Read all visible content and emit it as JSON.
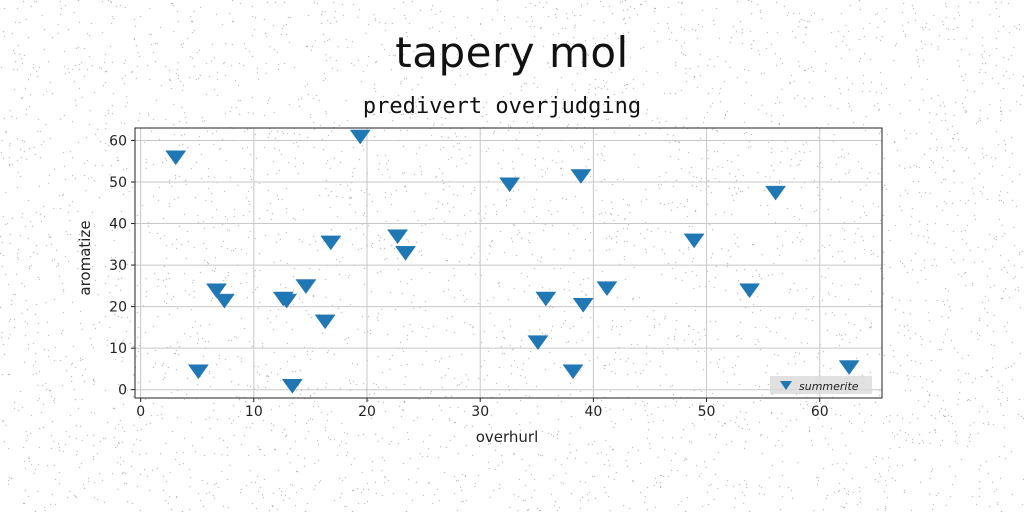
{
  "chart_data": {
    "type": "scatter",
    "title": "tapery mol",
    "subtitle": "predivert overjudging",
    "xlabel": "overhurl",
    "ylabel": "aromatize",
    "xlim": [
      -0.5,
      65.5
    ],
    "ylim": [
      -2,
      63
    ],
    "xticks": [
      0,
      10,
      20,
      30,
      40,
      50,
      60
    ],
    "yticks": [
      0,
      10,
      20,
      30,
      40,
      50,
      60
    ],
    "grid": true,
    "legend_position": "bottom-right",
    "series": [
      {
        "name": "summerite",
        "color": "#1f77b4",
        "marker": "triangle-down",
        "points": [
          [
            3.1,
            56
          ],
          [
            19.4,
            61
          ],
          [
            5.1,
            4.5
          ],
          [
            6.7,
            24
          ],
          [
            7.4,
            21.5
          ],
          [
            12.6,
            22
          ],
          [
            12.9,
            21.5
          ],
          [
            13.4,
            1
          ],
          [
            14.6,
            25
          ],
          [
            16.3,
            16.5
          ],
          [
            16.8,
            35.5
          ],
          [
            22.7,
            37
          ],
          [
            23.4,
            33
          ],
          [
            32.6,
            49.5
          ],
          [
            35.1,
            11.5
          ],
          [
            35.8,
            22
          ],
          [
            38.2,
            4.5
          ],
          [
            38.9,
            51.5
          ],
          [
            39.1,
            20.5
          ],
          [
            41.2,
            24.5
          ],
          [
            48.9,
            36
          ],
          [
            53.8,
            24
          ],
          [
            56.1,
            47.5
          ],
          [
            62.6,
            5.5
          ]
        ]
      }
    ]
  }
}
